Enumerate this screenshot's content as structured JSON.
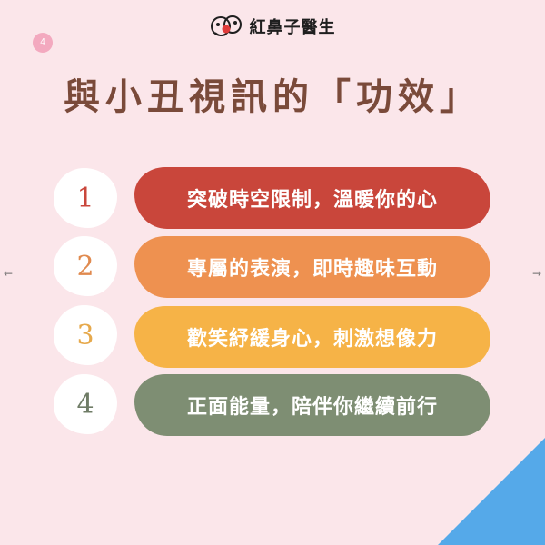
{
  "page": {
    "badge": "4"
  },
  "logo": {
    "text": "紅鼻子醫生",
    "icon": "clown-nose-logo-icon"
  },
  "title": "與小丑視訊的「功效」",
  "items": [
    {
      "num": "1",
      "text": "突破時空限制，溫暖你的心",
      "color": "#c9463b",
      "num_color": "#c9463b"
    },
    {
      "num": "2",
      "text": "專屬的表演，即時趣味互動",
      "color": "#ee9150",
      "num_color": "#e08a4f"
    },
    {
      "num": "3",
      "text": "歡笑紓緩身心，刺激想像力",
      "color": "#f6b347",
      "num_color": "#e6a94c"
    },
    {
      "num": "4",
      "text": "正面能量，陪伴你繼續前行",
      "color": "#7e8e73",
      "num_color": "#6f7c66"
    }
  ],
  "navigation": {
    "prev_icon": "arrow-left-icon",
    "prev_glyph": "←",
    "next_icon": "arrow-right-icon",
    "next_glyph": "→"
  },
  "colors": {
    "background": "#fbe6ea",
    "title": "#7a4a3a",
    "corner": "#55a9e9",
    "badge": "#f3a9bf"
  }
}
